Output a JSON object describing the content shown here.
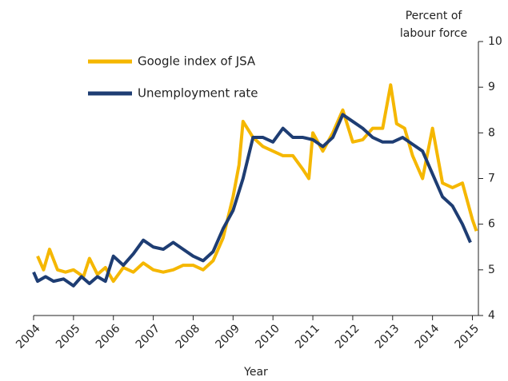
{
  "chart_data": {
    "type": "line",
    "y_label": [
      "Percent of",
      "labour force"
    ],
    "x_label": "Year",
    "xlim": [
      2004,
      2015.15
    ],
    "xticks": [
      2004,
      2005,
      2006,
      2007,
      2008,
      2009,
      2010,
      2011,
      2012,
      2013,
      2014,
      2015
    ],
    "ylim": [
      4,
      10
    ],
    "yticks": [
      4,
      5,
      6,
      7,
      8,
      9,
      10
    ],
    "legend": "top-left",
    "series": [
      {
        "name": "Google index of JSA",
        "color": "#f5b700",
        "x": [
          2004.1,
          2004.25,
          2004.4,
          2004.6,
          2004.8,
          2005.0,
          2005.25,
          2005.4,
          2005.6,
          2005.8,
          2006.0,
          2006.25,
          2006.5,
          2006.75,
          2007.0,
          2007.25,
          2007.5,
          2007.75,
          2008.0,
          2008.25,
          2008.5,
          2008.75,
          2009.0,
          2009.15,
          2009.25,
          2009.5,
          2009.75,
          2010.0,
          2010.25,
          2010.5,
          2010.75,
          2010.9,
          2011.0,
          2011.25,
          2011.5,
          2011.75,
          2012.0,
          2012.25,
          2012.5,
          2012.75,
          2012.95,
          2013.1,
          2013.3,
          2013.5,
          2013.75,
          2014.0,
          2014.25,
          2014.5,
          2014.75,
          2015.0,
          2015.1
        ],
        "values": [
          5.3,
          5.0,
          5.45,
          5.0,
          4.95,
          5.0,
          4.85,
          5.25,
          4.9,
          5.05,
          4.75,
          5.05,
          4.95,
          5.15,
          5.0,
          4.95,
          5.0,
          5.1,
          5.1,
          5.0,
          5.2,
          5.7,
          6.6,
          7.3,
          8.25,
          7.9,
          7.7,
          7.6,
          7.5,
          7.5,
          7.2,
          7.0,
          8.0,
          7.6,
          8.0,
          8.5,
          7.8,
          7.85,
          8.1,
          8.1,
          9.05,
          8.2,
          8.1,
          7.5,
          7.0,
          8.1,
          6.9,
          6.8,
          6.9,
          6.1,
          5.85
        ]
      },
      {
        "name": "Unemployment rate",
        "color": "#1e3d73",
        "x": [
          2004.0,
          2004.1,
          2004.3,
          2004.5,
          2004.75,
          2005.0,
          2005.2,
          2005.4,
          2005.6,
          2005.8,
          2006.0,
          2006.25,
          2006.5,
          2006.75,
          2007.0,
          2007.25,
          2007.5,
          2007.75,
          2008.0,
          2008.25,
          2008.5,
          2008.75,
          2009.0,
          2009.25,
          2009.5,
          2009.75,
          2010.0,
          2010.25,
          2010.5,
          2010.75,
          2011.0,
          2011.25,
          2011.5,
          2011.75,
          2012.0,
          2012.25,
          2012.5,
          2012.75,
          2013.0,
          2013.25,
          2013.5,
          2013.75,
          2014.0,
          2014.25,
          2014.5,
          2014.75,
          2014.95
        ],
        "values": [
          4.95,
          4.75,
          4.85,
          4.75,
          4.8,
          4.65,
          4.85,
          4.7,
          4.85,
          4.75,
          5.3,
          5.1,
          5.35,
          5.65,
          5.5,
          5.45,
          5.6,
          5.45,
          5.3,
          5.2,
          5.4,
          5.9,
          6.3,
          7.0,
          7.9,
          7.9,
          7.8,
          8.1,
          7.9,
          7.9,
          7.85,
          7.7,
          7.9,
          8.4,
          8.25,
          8.1,
          7.9,
          7.8,
          7.8,
          7.9,
          7.75,
          7.6,
          7.1,
          6.6,
          6.4,
          6.0,
          5.6
        ]
      }
    ]
  }
}
